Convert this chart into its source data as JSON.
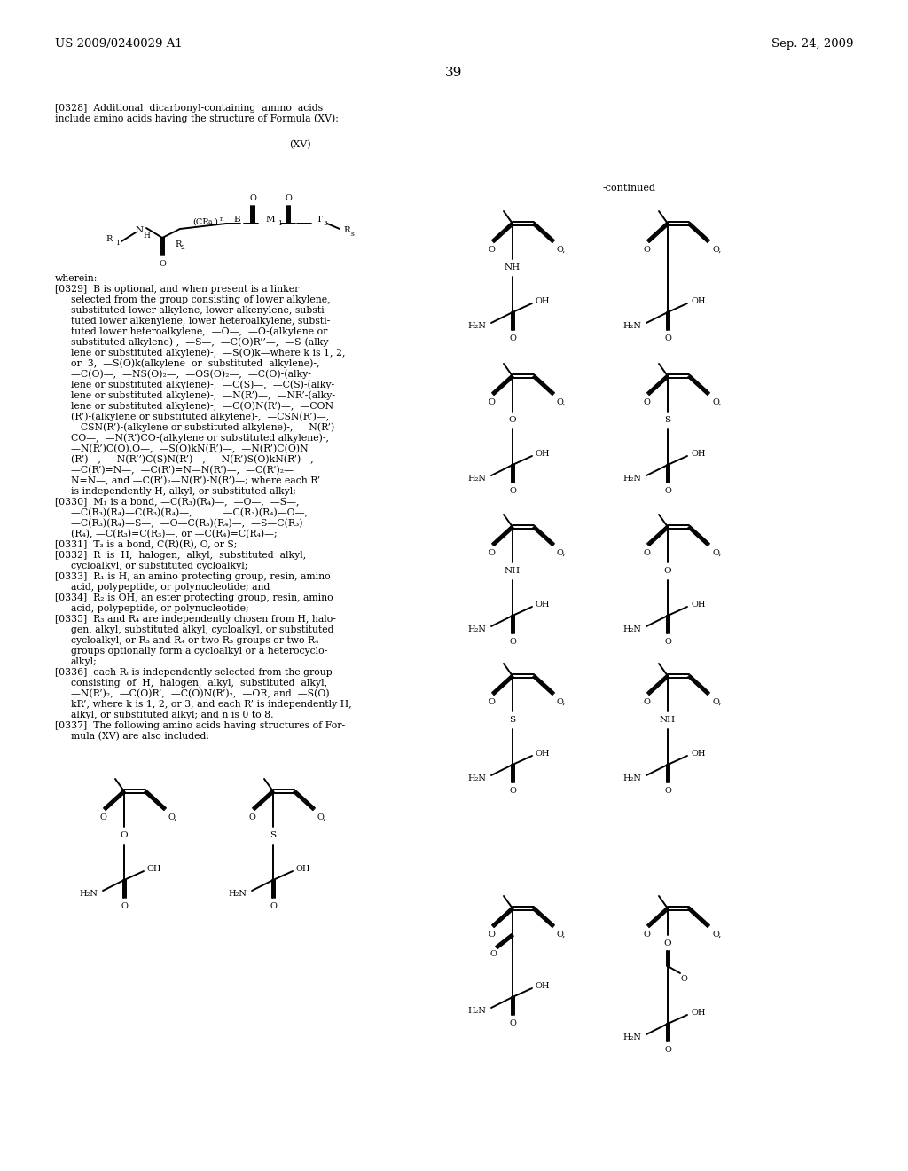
{
  "background_color": "#ffffff",
  "header_left": "US 2009/0240029 A1",
  "header_right": "Sep. 24, 2009",
  "page_num": "39",
  "continued_label": "-continued",
  "lm": 62,
  "ind": 80,
  "fs": 7.8,
  "hfs": 9.5
}
